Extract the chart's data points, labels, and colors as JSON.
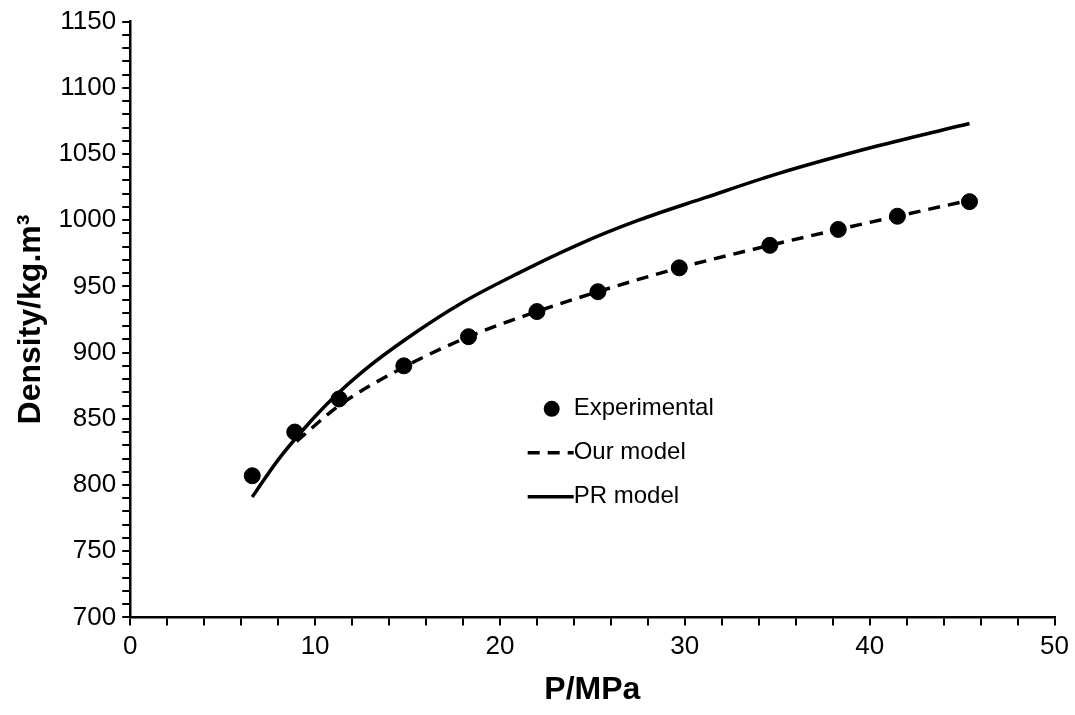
{
  "chart_data": {
    "type": "scatter",
    "xlabel": "P/MPa",
    "ylabel": "Density/kg.m³",
    "legend": "center",
    "grid": false,
    "xlim": [
      0,
      50
    ],
    "ylim": [
      700,
      1150
    ],
    "xticks": [
      0,
      {
        "value": 2,
        "label": null
      },
      {
        "value": 4,
        "label": null
      },
      {
        "value": 6,
        "label": null
      },
      {
        "value": 8,
        "label": null
      },
      10,
      {
        "value": 12,
        "label": null
      },
      {
        "value": 14,
        "label": null
      },
      {
        "value": 16,
        "label": null
      },
      {
        "value": 18,
        "label": null
      },
      20,
      {
        "value": 22,
        "label": null
      },
      {
        "value": 24,
        "label": null
      },
      {
        "value": 26,
        "label": null
      },
      {
        "value": 28,
        "label": null
      },
      30,
      {
        "value": 32,
        "label": null
      },
      {
        "value": 34,
        "label": null
      },
      {
        "value": 36,
        "label": null
      },
      {
        "value": 38,
        "label": null
      },
      40,
      {
        "value": 42,
        "label": null
      },
      {
        "value": 44,
        "label": null
      },
      {
        "value": 46,
        "label": null
      },
      {
        "value": 48,
        "label": null
      },
      50
    ],
    "yticks": [
      700,
      {
        "value": 710,
        "label": null
      },
      {
        "value": 720,
        "label": null
      },
      {
        "value": 730,
        "label": null
      },
      {
        "value": 740,
        "label": null
      },
      750,
      {
        "value": 760,
        "label": null
      },
      {
        "value": 770,
        "label": null
      },
      {
        "value": 780,
        "label": null
      },
      {
        "value": 790,
        "label": null
      },
      800,
      {
        "value": 810,
        "label": null
      },
      {
        "value": 820,
        "label": null
      },
      {
        "value": 830,
        "label": null
      },
      {
        "value": 840,
        "label": null
      },
      850,
      {
        "value": 860,
        "label": null
      },
      {
        "value": 870,
        "label": null
      },
      {
        "value": 880,
        "label": null
      },
      {
        "value": 890,
        "label": null
      },
      900,
      {
        "value": 910,
        "label": null
      },
      {
        "value": 920,
        "label": null
      },
      {
        "value": 930,
        "label": null
      },
      {
        "value": 940,
        "label": null
      },
      950,
      {
        "value": 960,
        "label": null
      },
      {
        "value": 970,
        "label": null
      },
      {
        "value": 980,
        "label": null
      },
      {
        "value": 990,
        "label": null
      },
      1000,
      {
        "value": 1010,
        "label": null
      },
      {
        "value": 1020,
        "label": null
      },
      {
        "value": 1030,
        "label": null
      },
      {
        "value": 1040,
        "label": null
      },
      1050,
      {
        "value": 1060,
        "label": null
      },
      {
        "value": 1070,
        "label": null
      },
      {
        "value": 1080,
        "label": null
      },
      {
        "value": 1090,
        "label": null
      },
      1100,
      {
        "value": 1110,
        "label": null
      },
      {
        "value": 1120,
        "label": null
      },
      {
        "value": 1130,
        "label": null
      },
      {
        "value": 1140,
        "label": null
      },
      1150
    ],
    "series": [
      {
        "name": "Experimental",
        "marker": "circle",
        "color": "#000000",
        "x": [
          6.6,
          8.9,
          11.3,
          14.8,
          18.3,
          22.0,
          25.3,
          29.7,
          34.6,
          38.3,
          41.5,
          45.4
        ],
        "values": [
          807,
          840,
          865,
          890,
          912,
          931,
          946,
          964,
          981,
          993,
          1003,
          1014
        ]
      },
      {
        "name": "Our model",
        "type": "line",
        "line_style": "dashed",
        "marker": "none",
        "color": "#000000",
        "x": [
          9,
          11.3,
          14.8,
          18.3,
          22,
          25.3,
          29.7,
          34.6,
          38.3,
          41.5,
          45.4
        ],
        "values": [
          833,
          860,
          889,
          912,
          931,
          946,
          964,
          981,
          993,
          1003,
          1015
        ]
      },
      {
        "name": "PR model",
        "type": "line",
        "line_style": "solid",
        "marker": "none",
        "color": "#000000",
        "x": [
          6.6,
          8,
          9.5,
          11,
          12.6,
          15,
          18,
          21,
          24.3,
          27.5,
          31.1,
          35,
          40.4,
          45.4
        ],
        "values": [
          791,
          819,
          844,
          866,
          886,
          911,
          938,
          960,
          982,
          1000,
          1017,
          1035,
          1056,
          1073
        ]
      }
    ]
  }
}
